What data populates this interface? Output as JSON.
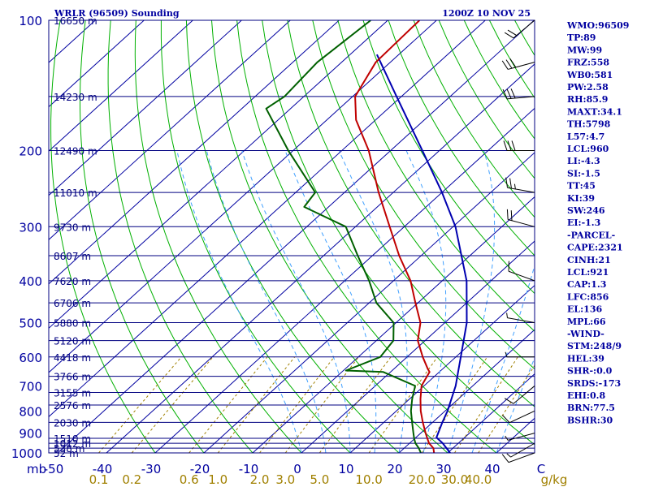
{
  "chart_data": {
    "type": "skewt_sounding",
    "title": "WRLR (96509) Sounding",
    "time": "1200Z 10 NOV 25",
    "pressure_levels": [
      1000,
      900,
      800,
      700,
      600,
      500,
      400,
      300,
      200,
      100
    ],
    "pressure_level_labels": [
      "1000",
      "900",
      "800",
      "700",
      "600",
      "500",
      "400",
      "300",
      "200",
      "100"
    ],
    "height_labels": [
      {
        "p": 1000,
        "label": "52 m"
      },
      {
        "p": 975,
        "label": "538 m"
      },
      {
        "p": 950,
        "label": "1012 m"
      },
      {
        "p": 925,
        "label": "1510 m"
      },
      {
        "p": 850,
        "label": "2030 m"
      },
      {
        "p": 775,
        "label": "2576 m"
      },
      {
        "p": 725,
        "label": "3155 m"
      },
      {
        "p": 665,
        "label": "3766 m"
      },
      {
        "p": 600,
        "label": "4418 m"
      },
      {
        "p": 550,
        "label": "5120 m"
      },
      {
        "p": 500,
        "label": "5880 m"
      },
      {
        "p": 450,
        "label": "6706 m"
      },
      {
        "p": 400,
        "label": "7620 m"
      },
      {
        "p": 350,
        "label": "8607 m"
      },
      {
        "p": 300,
        "label": "9730 m"
      },
      {
        "p": 250,
        "label": "11010 m"
      },
      {
        "p": 200,
        "label": "12490 m"
      },
      {
        "p": 150,
        "label": "14230 m"
      },
      {
        "p": 100,
        "label": "16650 m"
      }
    ],
    "temp_axis_label": "mb",
    "temp_ticks": [
      "-50",
      "-40",
      "-30",
      "-20",
      "-10",
      "0",
      "10",
      "20",
      "30",
      "40",
      "C"
    ],
    "mixing_ratio_unit": "g/kg",
    "mixing_ratio_ticks": [
      "0.1",
      "0.2",
      "0.6",
      "1.0",
      "2.0",
      "3.0",
      "5.0",
      "10.0",
      "20.0",
      "30.0",
      "40.0"
    ],
    "temperature": [
      {
        "p": 1000,
        "t": 27.2
      },
      {
        "p": 975,
        "t": 26.0
      },
      {
        "p": 950,
        "t": 24.0
      },
      {
        "p": 925,
        "t": 22.5
      },
      {
        "p": 900,
        "t": 21.0
      },
      {
        "p": 850,
        "t": 18.0
      },
      {
        "p": 800,
        "t": 15.0
      },
      {
        "p": 750,
        "t": 12.2
      },
      {
        "p": 700,
        "t": 9.5
      },
      {
        "p": 650,
        "t": 8.0
      },
      {
        "p": 640,
        "t": 7.0
      },
      {
        "p": 600,
        "t": 3.2
      },
      {
        "p": 550,
        "t": -1.5
      },
      {
        "p": 500,
        "t": -5.0
      },
      {
        "p": 450,
        "t": -10.5
      },
      {
        "p": 400,
        "t": -16.5
      },
      {
        "p": 350,
        "t": -24.5
      },
      {
        "p": 300,
        "t": -33.0
      },
      {
        "p": 250,
        "t": -43.0
      },
      {
        "p": 200,
        "t": -54.5
      },
      {
        "p": 170,
        "t": -64.0
      },
      {
        "p": 150,
        "t": -69.5
      },
      {
        "p": 125,
        "t": -73.0
      },
      {
        "p": 100,
        "t": -73.5
      }
    ],
    "dewpoint": [
      {
        "p": 1000,
        "t": 24.5
      },
      {
        "p": 975,
        "t": 23.0
      },
      {
        "p": 950,
        "t": 21.2
      },
      {
        "p": 925,
        "t": 19.8
      },
      {
        "p": 900,
        "t": 18.5
      },
      {
        "p": 850,
        "t": 15.8
      },
      {
        "p": 800,
        "t": 13.0
      },
      {
        "p": 750,
        "t": 10.5
      },
      {
        "p": 700,
        "t": 8.2
      },
      {
        "p": 650,
        "t": -1.5
      },
      {
        "p": 645,
        "t": -9.5
      },
      {
        "p": 600,
        "t": -5.5
      },
      {
        "p": 550,
        "t": -6.5
      },
      {
        "p": 500,
        "t": -10.5
      },
      {
        "p": 450,
        "t": -18.5
      },
      {
        "p": 400,
        "t": -25.0
      },
      {
        "p": 350,
        "t": -33.0
      },
      {
        "p": 300,
        "t": -42.0
      },
      {
        "p": 270,
        "t": -55.0
      },
      {
        "p": 250,
        "t": -56.0
      },
      {
        "p": 200,
        "t": -71.0
      },
      {
        "p": 160,
        "t": -85.0
      },
      {
        "p": 150,
        "t": -84.0
      },
      {
        "p": 125,
        "t": -85.0
      },
      {
        "p": 100,
        "t": -83.5
      }
    ],
    "parcel": [
      {
        "p": 1000,
        "t": 30.5
      },
      {
        "p": 950,
        "t": 26.8
      },
      {
        "p": 921,
        "t": 24.2
      },
      {
        "p": 850,
        "t": 22.0
      },
      {
        "p": 800,
        "t": 20.5
      },
      {
        "p": 700,
        "t": 16.5
      },
      {
        "p": 600,
        "t": 11.0
      },
      {
        "p": 500,
        "t": 4.5
      },
      {
        "p": 400,
        "t": -5.0
      },
      {
        "p": 300,
        "t": -19.5
      },
      {
        "p": 250,
        "t": -30.0
      },
      {
        "p": 200,
        "t": -43.5
      },
      {
        "p": 150,
        "t": -61.0
      },
      {
        "p": 120,
        "t": -74.5
      }
    ],
    "wind_barbs": [
      {
        "p": 1000,
        "dir": 250,
        "spd": 10
      },
      {
        "p": 950,
        "dir": 240,
        "spd": 5
      },
      {
        "p": 900,
        "dir": 255,
        "spd": 5
      },
      {
        "p": 800,
        "dir": 245,
        "spd": 10
      },
      {
        "p": 700,
        "dir": 230,
        "spd": 10
      },
      {
        "p": 600,
        "dir": 270,
        "spd": 5
      },
      {
        "p": 500,
        "dir": 280,
        "spd": 5
      },
      {
        "p": 400,
        "dir": 290,
        "spd": 10
      },
      {
        "p": 300,
        "dir": 285,
        "spd": 20
      },
      {
        "p": 250,
        "dir": 280,
        "spd": 25
      },
      {
        "p": 200,
        "dir": 270,
        "spd": 30
      },
      {
        "p": 150,
        "dir": 265,
        "spd": 30
      },
      {
        "p": 125,
        "dir": 255,
        "spd": 30
      },
      {
        "p": 100,
        "dir": 230,
        "spd": 20
      }
    ],
    "indices": [
      "WMO:96509",
      "TP:89",
      "MW:99",
      "FRZ:558",
      "WB0:581",
      "PW:2.58",
      "RH:85.9",
      "MAXT:34.1",
      "TH:5798",
      "L57:4.7",
      "LCL:960",
      "LI:-4.3",
      "SI:-1.5",
      "TT:45",
      "KI:39",
      "SW:246",
      "EI:-1.3",
      "-PARCEL-",
      "CAPE:2321",
      "CINH:21",
      "LCL:921",
      "CAP:1.3",
      "LFC:856",
      "EL:136",
      "MPL:66",
      "-WIND-",
      "STM:248/9",
      "HEL:39",
      "SHR-:0.0",
      "SRDS:-173",
      "EHI:0.8",
      "BRN:77.5",
      "BSHR:30"
    ],
    "colors": {
      "frame": "#000080",
      "isobar": "#000080",
      "isotherm": "#0000a0",
      "dry_adiabat": "#00b000",
      "moist_adiabat": "#40a0ff",
      "mixing_ratio": "#a08000",
      "temperature": "#c00000",
      "dewpoint": "#006000",
      "parcel": "#0000b0",
      "barb": "#000000"
    }
  }
}
